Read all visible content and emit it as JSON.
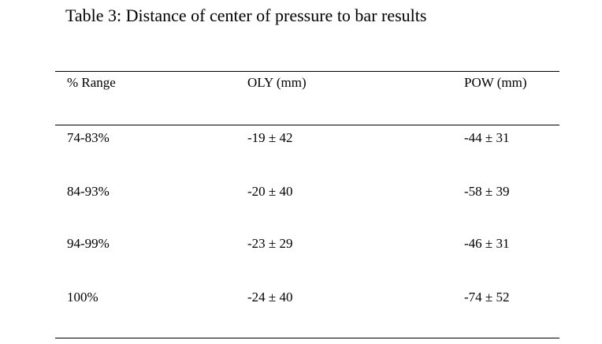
{
  "caption": "Table 3: Distance of center of pressure to bar results",
  "table": {
    "headers": [
      "% Range",
      "OLY (mm)",
      "POW (mm)"
    ],
    "rows": [
      [
        "74-83%",
        "-19 ± 42",
        "-44 ± 31"
      ],
      [
        "84-93%",
        "-20 ± 40",
        "-58 ± 39"
      ],
      [
        "94-99%",
        "-23 ± 29",
        "-46 ± 31"
      ],
      [
        "100%",
        "-24 ± 40",
        "-74 ± 52"
      ]
    ]
  }
}
